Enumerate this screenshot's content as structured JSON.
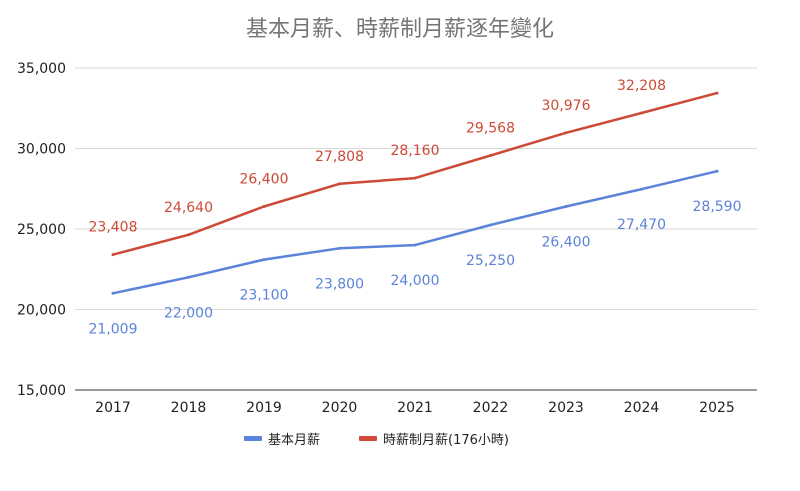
{
  "chart_data": {
    "type": "line",
    "title": "基本月薪、時薪制月薪逐年變化",
    "xlabel": "",
    "ylabel": "",
    "categories": [
      "2017",
      "2018",
      "2019",
      "2020",
      "2021",
      "2022",
      "2023",
      "2024",
      "2025"
    ],
    "ylim": [
      15000,
      35000
    ],
    "yticks": [
      15000,
      20000,
      25000,
      30000,
      35000
    ],
    "ytick_labels": [
      "15,000",
      "20,000",
      "25,000",
      "30,000",
      "35,000"
    ],
    "grid": true,
    "legend_position": "bottom",
    "series": [
      {
        "name": "基本月薪",
        "color": "#5b83d9",
        "label_position": "below",
        "values": [
          21009,
          22000,
          23100,
          23800,
          24000,
          25250,
          26400,
          27470,
          28590
        ],
        "labels": [
          "21,009",
          "22,000",
          "23,100",
          "23,800",
          "24,000",
          "25,250",
          "26,400",
          "27,470",
          "28,590"
        ]
      },
      {
        "name": "時薪制月薪(176小時)",
        "color": "#cc4a37",
        "label_position": "above",
        "values": [
          23408,
          24640,
          26400,
          27808,
          28160,
          29568,
          30976,
          32208,
          33440
        ],
        "labels": [
          "23,408",
          "24,640",
          "26,400",
          "27,808",
          "28,160",
          "29,568",
          "30,976",
          "32,208",
          null
        ]
      }
    ]
  }
}
